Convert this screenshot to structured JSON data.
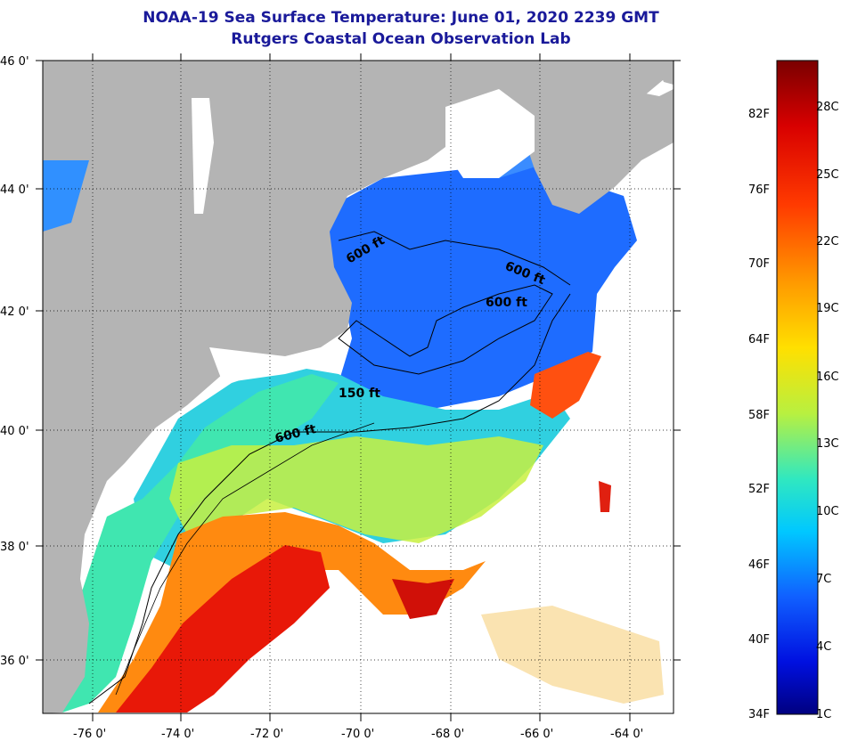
{
  "header": {
    "title": "NOAA-19 Sea Surface Temperature:  June 01, 2020 2239 GMT",
    "subtitle": "Rutgers Coastal Ocean Observation Lab"
  },
  "map": {
    "lat_labels": [
      "46 0'",
      "44 0'",
      "42 0'",
      "40 0'",
      "38 0'",
      "36 0'"
    ],
    "lon_labels": [
      "-76 0'",
      "-74 0'",
      "-72 0'",
      "-70 0'",
      "-68 0'",
      "-66 0'",
      "-64 0'"
    ],
    "contour_labels": {
      "a": "600 ft",
      "b": "600 ft",
      "c": "600 ft",
      "d": "150 ft",
      "e": "600 ft"
    },
    "land_color": "#b4b4b4",
    "cloud_color": "#ffffff"
  },
  "colorbar": {
    "fahrenheit": [
      "82F",
      "76F",
      "70F",
      "64F",
      "58F",
      "52F",
      "46F",
      "40F",
      "34F"
    ],
    "celsius": [
      "28C",
      "25C",
      "22C",
      "19C",
      "16C",
      "13C",
      "10C",
      "7C",
      "4C",
      "1C"
    ],
    "colors": {
      "hot": "#8b0000",
      "warm": "#ff2000",
      "mild": "#ffd000",
      "cool": "#00e0e0",
      "cold": "#0020ff",
      "coldest": "#00007f"
    }
  }
}
